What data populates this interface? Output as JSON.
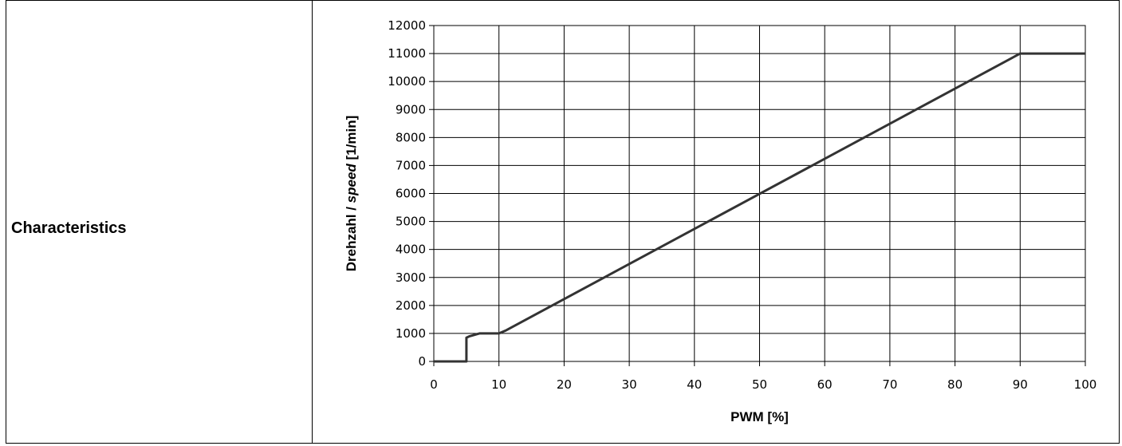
{
  "row": {
    "label": "Characteristics"
  },
  "chart_data": {
    "type": "line",
    "xlabel": "PWM [%]",
    "ylabel_parts": [
      "Drehzahl / ",
      "speed",
      " [1/min]"
    ],
    "xlim": [
      0,
      100
    ],
    "ylim": [
      0,
      12000
    ],
    "x_ticks": [
      0,
      10,
      20,
      30,
      40,
      50,
      60,
      70,
      80,
      90,
      100
    ],
    "y_ticks": [
      0,
      1000,
      2000,
      3000,
      4000,
      5000,
      6000,
      7000,
      8000,
      9000,
      10000,
      11000,
      12000
    ],
    "grid": true,
    "series": [
      {
        "x": [
          0,
          5,
          5,
          5.5,
          7,
          10,
          11,
          90,
          100
        ],
        "y": [
          0,
          0,
          850,
          900,
          1000,
          1000,
          1100,
          11000,
          11000
        ]
      }
    ]
  }
}
